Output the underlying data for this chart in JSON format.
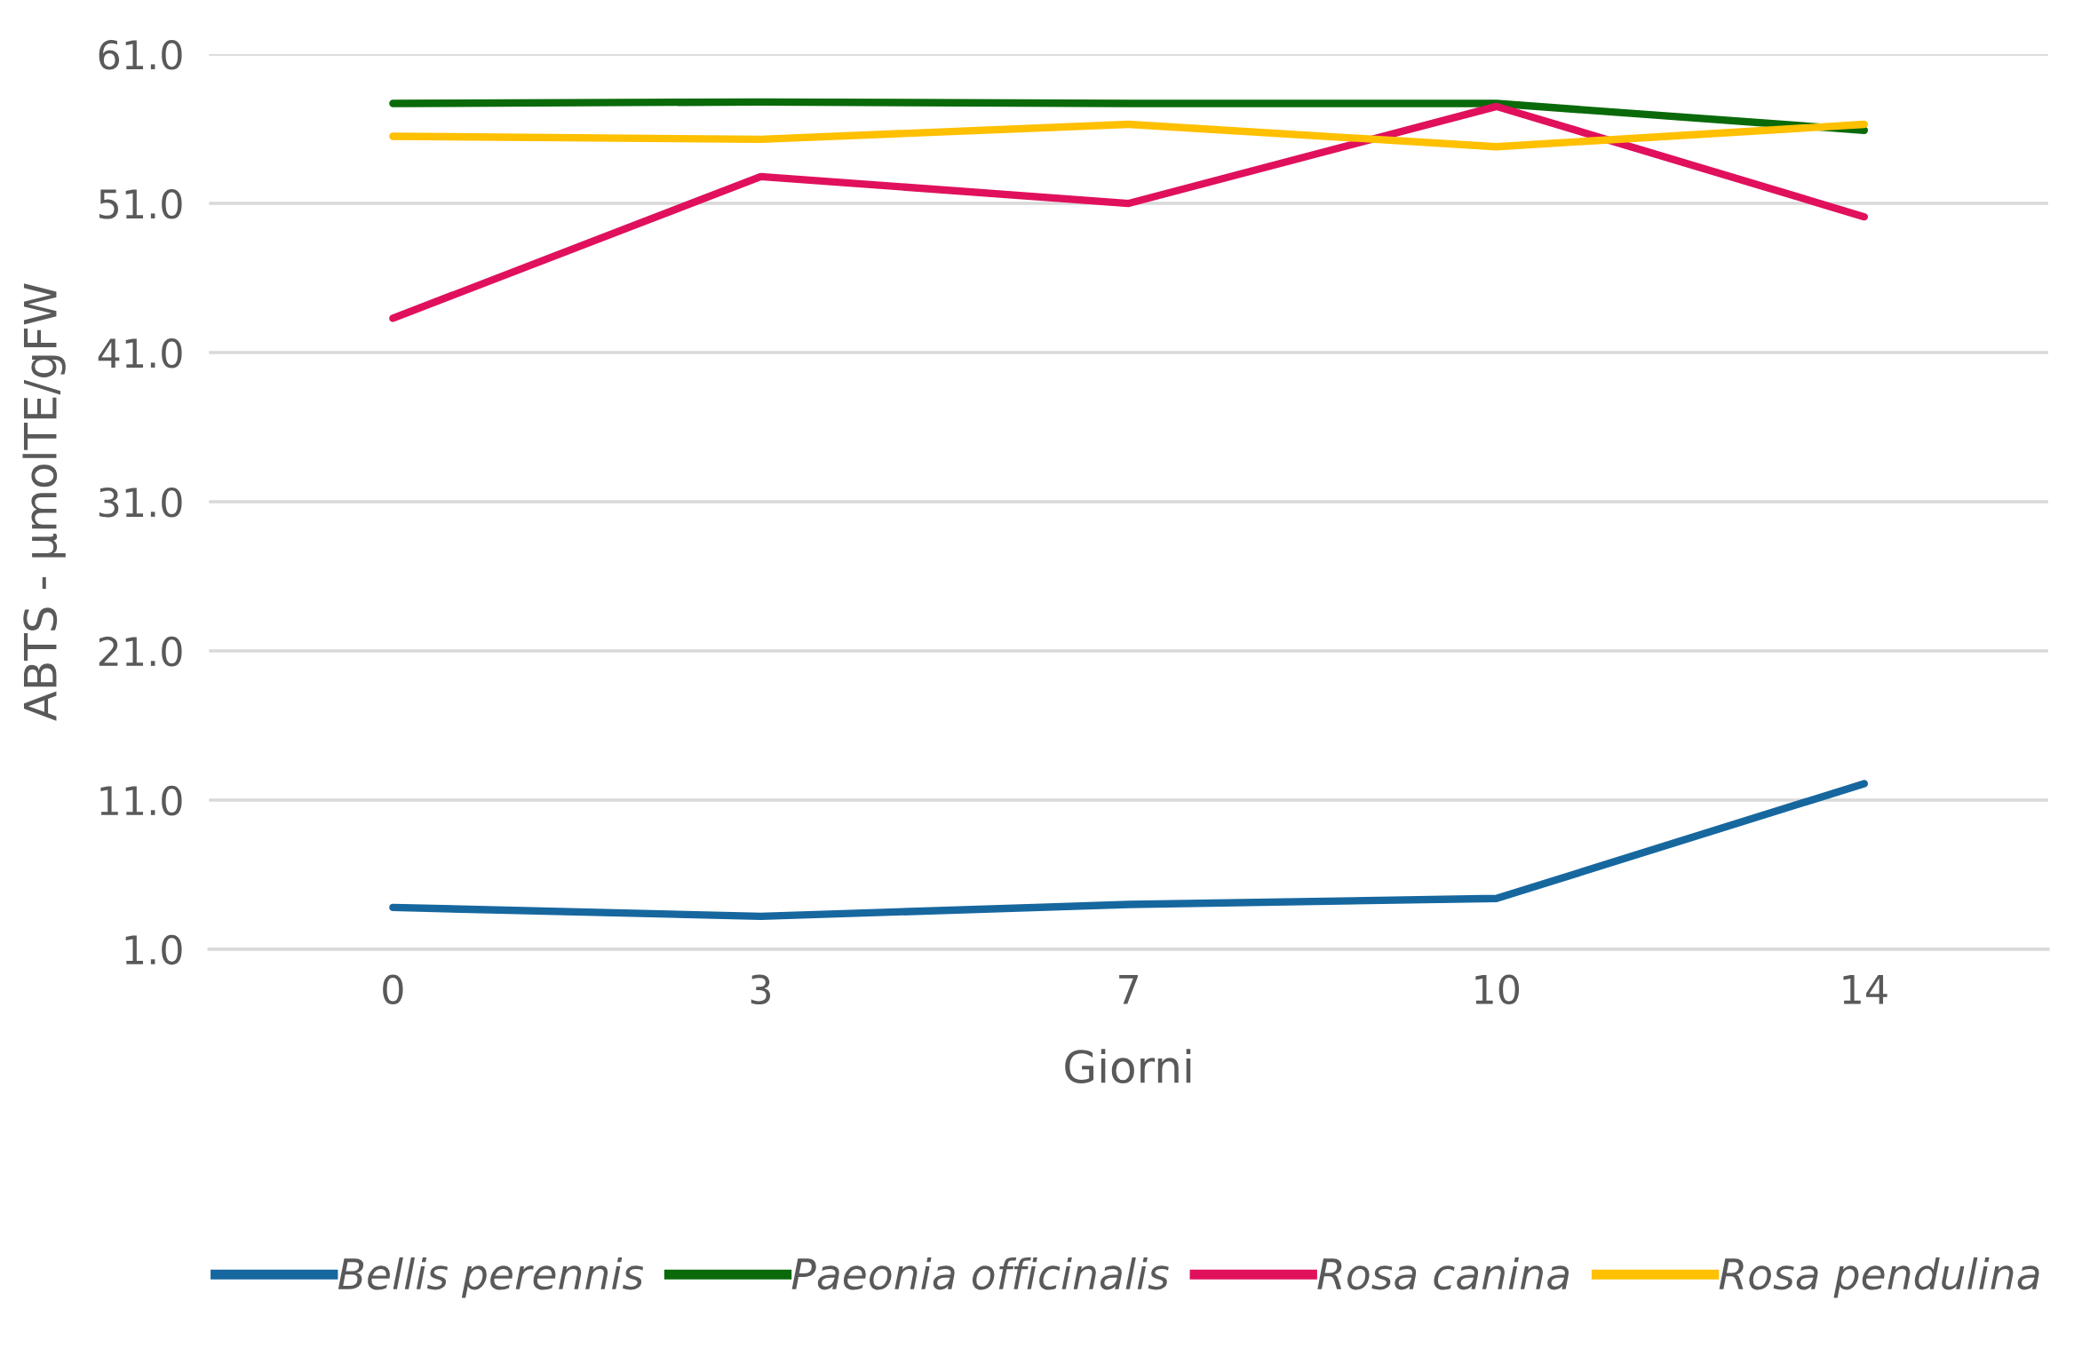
{
  "chart_data": {
    "type": "line",
    "xlabel": "Giorni",
    "ylabel": "ABTS - µmolTE/gFW",
    "categories": [
      "0",
      "3",
      "7",
      "10",
      "14"
    ],
    "series": [
      {
        "name": "Bellis perennis",
        "color": "#17679f",
        "values": [
          3.8,
          3.2,
          4.0,
          4.4,
          12.1
        ]
      },
      {
        "name": "Paeonia officinalis",
        "color": "#0a6a0a",
        "values": [
          57.7,
          57.8,
          57.7,
          57.7,
          55.9
        ]
      },
      {
        "name": "Rosa canina",
        "color": "#e0105c",
        "values": [
          43.3,
          52.8,
          51.0,
          57.5,
          50.1
        ]
      },
      {
        "name": "Rosa pendulina",
        "color": "#ffc000",
        "values": [
          55.5,
          55.3,
          56.3,
          54.8,
          56.3
        ]
      }
    ],
    "ylim": [
      1,
      61
    ],
    "yticks": [
      {
        "value": 1,
        "label": "1.0"
      },
      {
        "value": 11,
        "label": "11.0"
      },
      {
        "value": 21,
        "label": "21.0"
      },
      {
        "value": 31,
        "label": "31.0"
      },
      {
        "value": 41,
        "label": "41.0"
      },
      {
        "value": 51,
        "label": "51.0"
      },
      {
        "value": 61,
        "label": "61.0"
      }
    ],
    "grid": "y",
    "legend": "bottom",
    "marker": "none",
    "line_style": "solid"
  }
}
